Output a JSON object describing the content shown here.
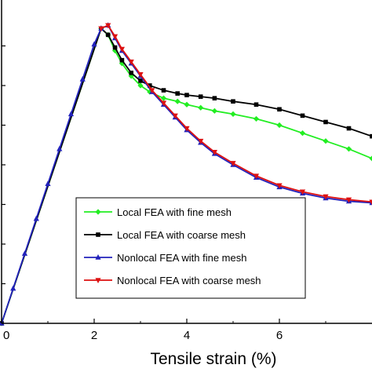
{
  "chart_data": {
    "type": "line",
    "title": "",
    "xlabel": "Tensile strain (%)",
    "ylabel": "",
    "xlim": [
      0,
      8.0
    ],
    "ylim": [
      0,
      1.0
    ],
    "x_ticks": [
      0,
      2,
      4,
      6
    ],
    "x_tick_labels": [
      "0",
      "2",
      "4",
      "6"
    ],
    "grid": false,
    "legend_position": "lower-center",
    "series": [
      {
        "name": "Local FEA with fine mesh",
        "color": "#22ee22",
        "marker": "diamond",
        "x": [
          0,
          2.15,
          2.3,
          2.45,
          2.6,
          2.8,
          3.0,
          3.2,
          3.5,
          3.8,
          4.0,
          4.3,
          4.6,
          5.0,
          5.5,
          6.0,
          6.5,
          7.0,
          7.5,
          8.0
        ],
        "y": [
          0,
          0.93,
          0.91,
          0.86,
          0.82,
          0.78,
          0.75,
          0.73,
          0.71,
          0.7,
          0.69,
          0.68,
          0.67,
          0.66,
          0.645,
          0.625,
          0.6,
          0.575,
          0.55,
          0.52
        ]
      },
      {
        "name": "Local FEA with coarse mesh",
        "color": "#000000",
        "marker": "square",
        "x": [
          0,
          2.15,
          2.3,
          2.45,
          2.6,
          2.8,
          3.0,
          3.2,
          3.5,
          3.8,
          4.0,
          4.3,
          4.6,
          5.0,
          5.5,
          6.0,
          6.5,
          7.0,
          7.5,
          8.0
        ],
        "y": [
          0,
          0.93,
          0.91,
          0.87,
          0.83,
          0.79,
          0.765,
          0.75,
          0.735,
          0.725,
          0.72,
          0.715,
          0.71,
          0.7,
          0.69,
          0.675,
          0.655,
          0.635,
          0.615,
          0.59
        ]
      },
      {
        "name": "Nonlocal FEA with fine mesh",
        "color": "#2222bb",
        "marker": "triangle-up",
        "x": [
          0,
          0.25,
          0.5,
          0.75,
          1.0,
          1.25,
          1.5,
          1.75,
          2.0,
          2.15,
          2.3,
          2.45,
          2.6,
          2.8,
          3.0,
          3.25,
          3.5,
          3.75,
          4.0,
          4.3,
          4.6,
          5.0,
          5.5,
          6.0,
          6.5,
          7.0,
          7.5,
          8.0
        ],
        "y": [
          0,
          0.11,
          0.22,
          0.33,
          0.44,
          0.55,
          0.66,
          0.77,
          0.88,
          0.93,
          0.94,
          0.9,
          0.86,
          0.82,
          0.78,
          0.73,
          0.69,
          0.65,
          0.61,
          0.57,
          0.535,
          0.5,
          0.46,
          0.43,
          0.41,
          0.395,
          0.385,
          0.38
        ]
      },
      {
        "name": "Nonlocal FEA with coarse mesh",
        "color": "#dd1111",
        "marker": "triangle-down",
        "x": [
          2.15,
          2.3,
          2.45,
          2.6,
          2.8,
          3.0,
          3.25,
          3.5,
          3.75,
          4.0,
          4.3,
          4.6,
          5.0,
          5.5,
          6.0,
          6.5,
          7.0,
          7.5,
          8.0
        ],
        "y": [
          0.93,
          0.94,
          0.905,
          0.865,
          0.825,
          0.785,
          0.735,
          0.695,
          0.655,
          0.615,
          0.575,
          0.54,
          0.505,
          0.465,
          0.435,
          0.415,
          0.4,
          0.39,
          0.383
        ]
      }
    ]
  }
}
